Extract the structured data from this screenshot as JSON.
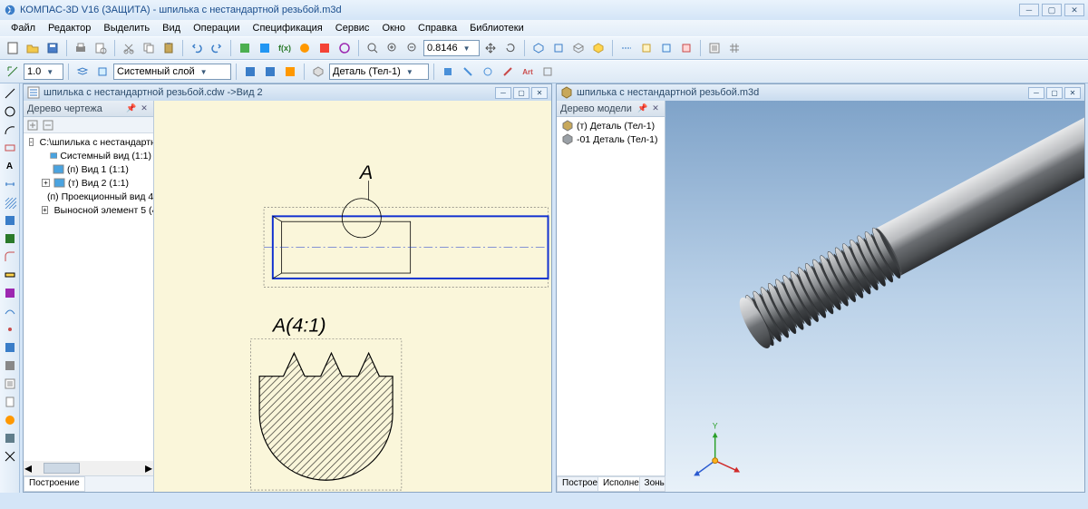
{
  "app": {
    "title": "КОМПАС-3D V16  (ЗАЩИТА) - шпилька с нестандартной резьбой.m3d"
  },
  "menu": [
    "Файл",
    "Редактор",
    "Выделить",
    "Вид",
    "Операции",
    "Спецификация",
    "Сервис",
    "Окно",
    "Справка",
    "Библиотеки"
  ],
  "toolbar1": {
    "zoom_value": "0.8146"
  },
  "toolbar2": {
    "scale": "1.0",
    "layer": "Системный слой",
    "part_label": "Деталь (Тел-1)"
  },
  "left_win": {
    "title": "шпилька с нестандартной резьбой.cdw ->Вид 2",
    "tree_header": "Дерево чертежа",
    "tree": [
      {
        "exp": "-",
        "icon": "doc",
        "label": "C:\\шпилька с нестандартно",
        "indent": 0
      },
      {
        "exp": "",
        "icon": "view",
        "label": "Системный вид (1:1)",
        "indent": 1
      },
      {
        "exp": "",
        "icon": "view",
        "label": "(п) Вид 1 (1:1)",
        "indent": 1
      },
      {
        "exp": "+",
        "icon": "view",
        "label": "(т) Вид 2 (1:1)",
        "indent": 1
      },
      {
        "exp": "",
        "icon": "view",
        "label": "(п) Проекционный вид 4",
        "indent": 1
      },
      {
        "exp": "+",
        "icon": "view",
        "label": "Выносной элемент 5 (4:",
        "indent": 1
      }
    ],
    "bottom_tab": "Построение",
    "annotations": {
      "label_A": "А",
      "label_A_scale": "А(4:1)"
    }
  },
  "right_win": {
    "title": "шпилька с нестандартной резьбой.m3d",
    "tree_header": "Дерево модели",
    "tree": [
      {
        "icon": "box",
        "label": "(т) Деталь (Тел-1)"
      },
      {
        "icon": "body",
        "label": "-01 Деталь (Тел-1)"
      }
    ],
    "bottom_tabs": [
      "Построе...",
      "Исполне...",
      "Зоны"
    ],
    "bottom_active": 1,
    "axis_labels": {
      "y": "Y",
      "xz": ""
    }
  },
  "colors": {
    "canvas_bg": "#faf6da",
    "blueprint_line": "#1030d0",
    "thin_line": "#000000",
    "dash": "#666666",
    "grad_sky_top": "#7fa3c9",
    "grad_sky_bot": "#e8f1f9",
    "screw_light": "#d8dadc",
    "screw_mid": "#9fa2a5",
    "screw_dark": "#4e5154"
  }
}
